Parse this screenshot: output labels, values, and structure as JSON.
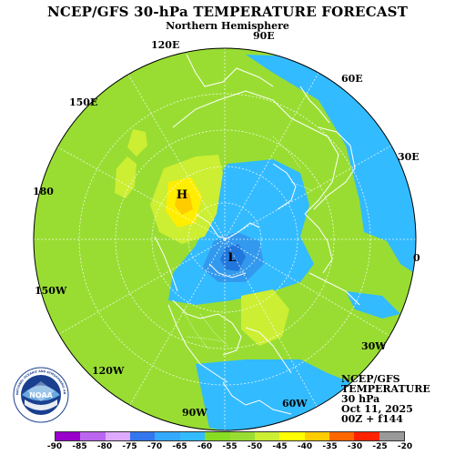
{
  "title": "NCEP/GFS 30-hPa TEMPERATURE FORECAST",
  "subtitle": "Northern Hemisphere",
  "longitude_labels": [
    "90E",
    "120E",
    "60E",
    "150E",
    "30E",
    "180",
    "0",
    "150W",
    "30W",
    "120W",
    "60W",
    "90W"
  ],
  "highs_lows": {
    "high": "H",
    "low": "L"
  },
  "info": {
    "line1": "NCEP/GFS",
    "line2": "TEMPERATURE",
    "line3": "30 hPa",
    "line4": "Oct 11, 2025",
    "line5": "00Z + f144"
  },
  "logo": {
    "name": "noaa-logo",
    "text": "NOAA",
    "ring_text": "NATIONAL OCEANIC AND ATMOSPHERIC ADMINISTRATION · U.S. DEPARTMENT OF COMMERCE"
  },
  "legend": {
    "ticks": [
      "-90",
      "-85",
      "-80",
      "-75",
      "-70",
      "-65",
      "-60",
      "-55",
      "-50",
      "-45",
      "-40",
      "-35",
      "-30",
      "-25",
      "-20"
    ],
    "colors": [
      "#9900cc",
      "#bb66ee",
      "#ddaaff",
      "#3377ee",
      "#33aaff",
      "#33bbff",
      "#88dd22",
      "#99dd33",
      "#ccee33",
      "#ffff00",
      "#ffcc00",
      "#ff6600",
      "#ff2200",
      "#999999"
    ]
  },
  "colors": {
    "background": "#99dd33",
    "cold": "#33bbff",
    "colder": "#3399ee",
    "coldest": "#2277dd",
    "warm": "#ccee33",
    "warmer": "#ffee00",
    "warmest": "#ffcc00"
  }
}
